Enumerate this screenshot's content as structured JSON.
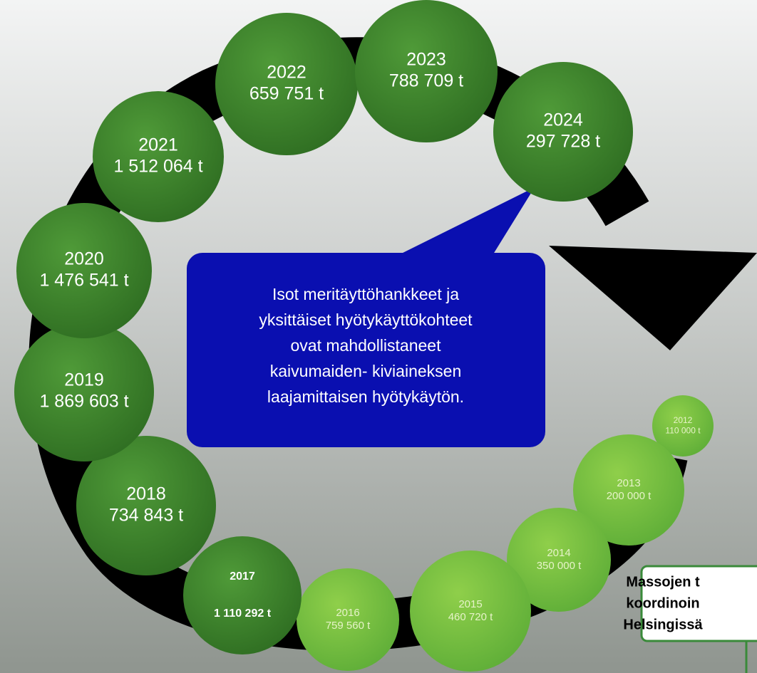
{
  "nodes": [
    {
      "year": "2012",
      "amount": "110 000 t"
    },
    {
      "year": "2013",
      "amount": "200 000 t"
    },
    {
      "year": "2014",
      "amount": "350 000 t"
    },
    {
      "year": "2015",
      "amount": "460 720 t"
    },
    {
      "year": "2016",
      "amount": "759 560 t"
    },
    {
      "year": "2017",
      "amount": "1 110 292 t"
    },
    {
      "year": "2018",
      "amount": "734 843 t"
    },
    {
      "year": "2019",
      "amount": "1 869 603 t"
    },
    {
      "year": "2020",
      "amount": "1 476 541 t"
    },
    {
      "year": "2021",
      "amount": "1 512 064 t"
    },
    {
      "year": "2022",
      "amount": "659 751 t"
    },
    {
      "year": "2023",
      "amount": "788 709 t"
    },
    {
      "year": "2024",
      "amount": "297 728 t"
    }
  ],
  "callout": {
    "lines": [
      "Isot meritäyttöhankkeet ja",
      "yksittäiset hyötykäyttökohteet",
      "ovat mahdollistaneet",
      "kaivumaiden- kiviaineksen",
      "laajamittaisen hyötykäytön."
    ]
  },
  "note": {
    "lines": [
      "Massojen t",
      "koordinoin",
      "Helsingissä"
    ]
  }
}
